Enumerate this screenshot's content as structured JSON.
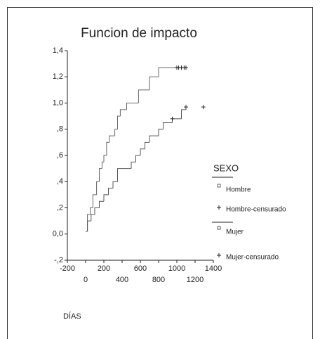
{
  "chart_data": {
    "type": "step",
    "title": "Funcion de impacto",
    "x_label": "DÍAS",
    "legend_title": "SEXO",
    "xlim": [
      -200,
      1400
    ],
    "xticks": [
      -200,
      0,
      200,
      400,
      600,
      800,
      1000,
      1200,
      1400
    ],
    "ylim": [
      -0.2,
      1.4
    ],
    "yticks": [
      {
        "value": -0.2,
        "label": "-,2"
      },
      {
        "value": 0,
        "label": "0,0"
      },
      {
        "value": 0.2,
        "label": ",2"
      },
      {
        "value": 0.4,
        "label": ",4"
      },
      {
        "value": 0.6,
        "label": ",6"
      },
      {
        "value": 0.8,
        "label": ",8"
      },
      {
        "value": 1.0,
        "label": "1,0"
      },
      {
        "value": 1.2,
        "label": "1,2"
      },
      {
        "value": 1.4,
        "label": "1,4"
      }
    ],
    "series": [
      {
        "name": "Hombre",
        "color": "#666666",
        "x": [
          0,
          20,
          50,
          80,
          120,
          150,
          180,
          200,
          230,
          260,
          320,
          350,
          380,
          450,
          580,
          700,
          800,
          1000
        ],
        "values": [
          0.02,
          0.15,
          0.2,
          0.3,
          0.4,
          0.5,
          0.55,
          0.6,
          0.7,
          0.75,
          0.8,
          0.9,
          0.95,
          1.0,
          1.1,
          1.2,
          1.27,
          1.27
        ]
      },
      {
        "name": "Hombre-censurado",
        "color": "#222222",
        "marker": "plus",
        "x": [
          1000,
          1020,
          1050,
          1080,
          1100
        ],
        "values": [
          1.27,
          1.27,
          1.27,
          1.27,
          1.27
        ]
      },
      {
        "name": "Mujer",
        "color": "#555555",
        "x": [
          0,
          20,
          60,
          100,
          150,
          200,
          250,
          300,
          350,
          500,
          550,
          600,
          650,
          700,
          800,
          850,
          950,
          1050,
          1100
        ],
        "values": [
          0.02,
          0.1,
          0.15,
          0.2,
          0.25,
          0.3,
          0.35,
          0.4,
          0.5,
          0.55,
          0.6,
          0.65,
          0.7,
          0.75,
          0.8,
          0.85,
          0.88,
          0.95,
          0.97
        ]
      },
      {
        "name": "Mujer-censurado",
        "color": "#222222",
        "marker": "plus",
        "x": [
          950,
          1100,
          1290
        ],
        "values": [
          0.88,
          0.97,
          0.97
        ]
      }
    ]
  }
}
